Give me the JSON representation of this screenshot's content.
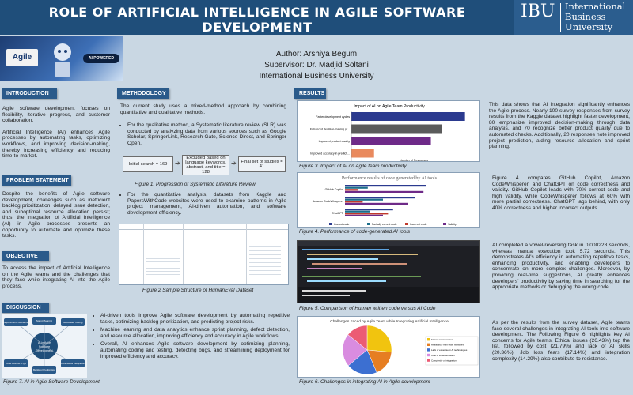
{
  "header": {
    "title": "ROLE OF ARTIFICIAL INTELLIGENCE IN AGILE SOFTWARE DEVELOPMENT",
    "logo_abbr": "IBU",
    "logo_name": [
      "International",
      "Business",
      "University"
    ]
  },
  "banner": {
    "agile_label": "Agile",
    "ai_badge": "AI POWERED"
  },
  "authors": {
    "author": "Author: Arshiya Begum",
    "supervisor": "Supervisor: Dr. Madjid Soltani",
    "university": "International Business University"
  },
  "introduction": {
    "heading": "INTRODUCTION",
    "p1": "Agile software development focuses on flexibility, iterative progress, and customer collaboration.",
    "p2": "Artificial Intelligence (AI) enhances Agile processes by automating tasks, optimizing workflows, and improving decision-making, thereby increasing efficiency and reducing time-to-market."
  },
  "problem": {
    "heading": "PROBLEM STATEMENT",
    "text": "Despite the benefits of Agile software development, challenges such as inefficient backlog prioritization, delayed issue detection, and suboptimal resource allocation persist; thus, the integration of Artificial Intelligence (AI) in Agile processes presents an opportunity to automate and optimize these tasks."
  },
  "objective": {
    "heading": "OBJECTIVE",
    "text": "To access the impact of Artificial Intelligence on the Agile teams and the challenges that they face while integrating AI into the Agile process."
  },
  "methodology": {
    "heading": "METHODOLOGY",
    "p1": "The current study uses a mixed-method approach by combining quantitative and qualitative methods.",
    "b1": "For the qualitative method, a Systematic literature review (SLR) was conducted by analyzing data from various sources such as Google Scholar, SpringerLink, Research Gate, Science Direct, and Springer Open.",
    "flow": [
      "Initial search = 169",
      "Excluded based on language keywords, abstract, and title = 128",
      "Final set of studies = 41"
    ],
    "fig1": "Figure 1. Progression of Systematic Literature Review",
    "b2": "For the quantitative analysis, datasets from Kaggle and PapersWithCode websites were used to examine patterns in Agile project management, AI-driven automation, and software development efficiency.",
    "fig2": "Figure 2 Sample Structure of HumanEval Dataset"
  },
  "results": {
    "heading": "RESULTS",
    "fig3": "Figure 3. Impact of AI on Agile team productivity",
    "fig4": "Figure 4. Performance of code-generated AI tools",
    "fig5": "Figure 5. Comparison of Human written code versus AI Code",
    "fig6": "Figure 6. Challenges in integrating AI in Agile development",
    "t3": "This data shows that AI integration significantly enhances the Agile process. Nearly 100 survey responses from survey results from the Kaggle dataset highlight faster development, 80 emphasize improved decision-making through data analysis, and 70 recognize better product quality due to automated checks. Additionally, 20 responses note improved project prediction, aiding resource allocation and sprint planning.",
    "t4": "Figure 4 compares GitHub Copilot, Amazon CodeWhisperer, and ChatGPT on code correctness and validity. GitHub Copilot leads with 70% correct code and high validity, while CodeWhisperer follows at 60% with more partial correctness. ChatGPT lags behind, with only 40% correctness and higher incorrect outputs.",
    "t5": "AI completed a vowel-reversing task in 0.000228 seconds, whereas manual execution took 5.72 seconds. This demonstrates AI's efficiency in automating repetitive tasks, enhancing productivity, and enabling developers to concentrate on more complex challenges. Moreover, by providing real-time suggestions, AI greatly enhances developers' productivity by saving time in searching for the appropriate methods or debugging the wrong code.",
    "t6": "As per the results from the survey dataset, Agile teams face several challenges in integrating AI tools into software development. The Following Figure 6 highlights key AI concerns for Agile teams. Ethical issues (26.43%) top the list, followed by cost (21.79%) and lack of AI skills (20.36%). Job loss fears (17.14%) and integration complexity (14.29%) also contribute to resistance."
  },
  "chart3": {
    "title": "Impact of AI on Agile Team Productivity",
    "xlabel": "Number of Responses",
    "categories": [
      "Faster development cycles",
      "Enhanced decision-making pr...",
      "Improved product quality",
      "Improved accuracy in predicti..."
    ],
    "values": [
      100,
      80,
      70,
      20
    ],
    "colors": [
      "#2b3a8f",
      "#5b5b5b",
      "#6e2a88",
      "#e98a5e"
    ],
    "xmax": 110
  },
  "chart4": {
    "title": "Performance results of code generated by AI tools",
    "categories": [
      "GitHub Copilot",
      "Amazon CodeWhisperer",
      "ChatGPT"
    ],
    "series_names": [
      "Correct code",
      "Partially correct code",
      "Incorrect code",
      "Validity"
    ],
    "colors": [
      "#2b3a8f",
      "#1c6e8a",
      "#c0392b",
      "#6e2a88"
    ]
  },
  "chart6": {
    "title": "Challenges Faced by Agile Team while Integrating Artificial Intelligence",
    "labels": [
      "Ethical considerations",
      "Resistance from team members",
      "Lack of expertise in AI technologies",
      "Cost of implementation",
      "Complexity of integration"
    ],
    "values": [
      26.43,
      17.14,
      20.36,
      21.79,
      14.29
    ],
    "colors": [
      "#f1c40f",
      "#e67e22",
      "#3c6fd1",
      "#d98ce0",
      "#ec5b74"
    ]
  },
  "discussion": {
    "heading": "DISCUSSION",
    "center_label": "AI in Agile Software Development",
    "nodes": [
      "Requirements Gathering",
      "Sprint Planning",
      "Automated Testing",
      "Code Review & QA",
      "Backlog Prioritization",
      "Continuous Integration"
    ],
    "fig7": "Figure 7. AI in Agile Software Development",
    "b1": "AI-driven tools improve Agile software development by automating repetitive tasks, optimizing backlog prioritization, and predicting project risks.",
    "b2": "Machine learning and data analytics enhance sprint planning, defect detection, and resource allocation, improving efficiency and accuracy in Agile workflows.",
    "b3": "Overall, AI enhances Agile software development by optimizing planning, automating coding and testing, detecting bugs, and streamlining deployment for improved efficiency and accuracy."
  }
}
